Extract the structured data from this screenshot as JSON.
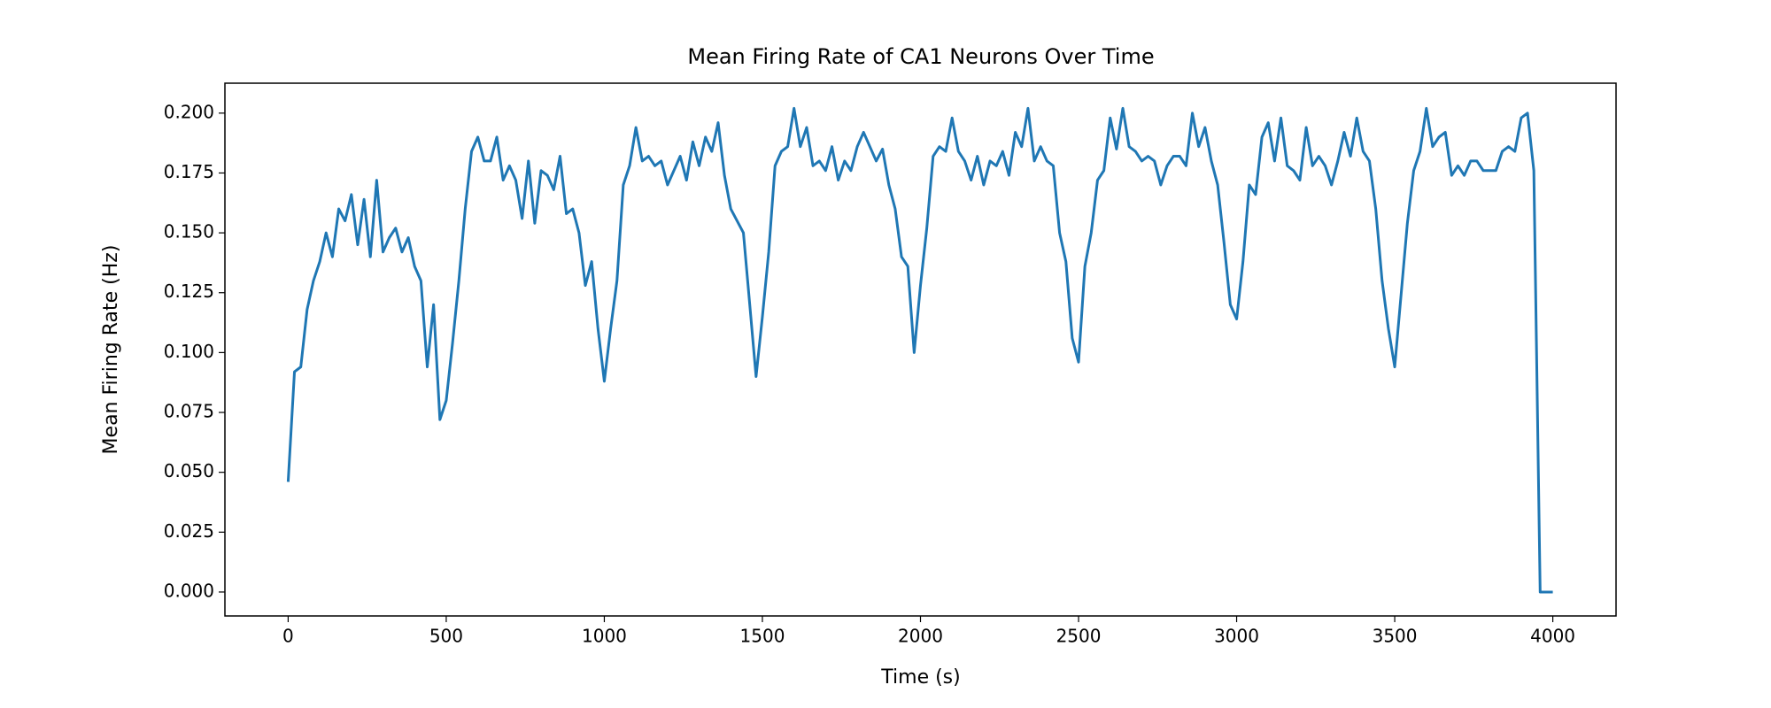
{
  "chart_data": {
    "type": "line",
    "title": "Mean Firing Rate of CA1 Neurons Over Time",
    "x_label": "Time (s)",
    "y_label": "Mean Firing Rate (Hz)",
    "x": [
      0,
      20,
      40,
      60,
      80,
      100,
      120,
      140,
      160,
      180,
      200,
      220,
      240,
      260,
      280,
      300,
      320,
      340,
      360,
      380,
      400,
      420,
      440,
      460,
      480,
      500,
      520,
      540,
      560,
      580,
      600,
      620,
      640,
      660,
      680,
      700,
      720,
      740,
      760,
      780,
      800,
      820,
      840,
      860,
      880,
      900,
      920,
      940,
      960,
      980,
      1000,
      1020,
      1040,
      1060,
      1080,
      1100,
      1120,
      1140,
      1160,
      1180,
      1200,
      1220,
      1240,
      1260,
      1280,
      1300,
      1320,
      1340,
      1360,
      1380,
      1400,
      1420,
      1440,
      1460,
      1480,
      1500,
      1520,
      1540,
      1560,
      1580,
      1600,
      1620,
      1640,
      1660,
      1680,
      1700,
      1720,
      1740,
      1760,
      1780,
      1800,
      1820,
      1840,
      1860,
      1880,
      1900,
      1920,
      1940,
      1960,
      1980,
      2000,
      2020,
      2040,
      2060,
      2080,
      2100,
      2120,
      2140,
      2160,
      2180,
      2200,
      2220,
      2240,
      2260,
      2280,
      2300,
      2320,
      2340,
      2360,
      2380,
      2400,
      2420,
      2440,
      2460,
      2480,
      2500,
      2520,
      2540,
      2560,
      2580,
      2600,
      2620,
      2640,
      2660,
      2680,
      2700,
      2720,
      2740,
      2760,
      2780,
      2800,
      2820,
      2840,
      2860,
      2880,
      2900,
      2920,
      2940,
      2960,
      2980,
      3000,
      3020,
      3040,
      3060,
      3080,
      3100,
      3120,
      3140,
      3160,
      3180,
      3200,
      3220,
      3240,
      3260,
      3280,
      3300,
      3320,
      3340,
      3360,
      3380,
      3400,
      3420,
      3440,
      3460,
      3480,
      3500,
      3520,
      3540,
      3560,
      3580,
      3600,
      3620,
      3640,
      3660,
      3680,
      3700,
      3720,
      3740,
      3760,
      3780,
      3800,
      3820,
      3840,
      3860,
      3880,
      3900,
      3920,
      3940,
      3960,
      3980,
      4000
    ],
    "series": [
      {
        "color": "#1f77b4",
        "values": [
          0.046,
          0.092,
          0.094,
          0.118,
          0.13,
          0.138,
          0.15,
          0.14,
          0.16,
          0.155,
          0.166,
          0.145,
          0.164,
          0.14,
          0.172,
          0.142,
          0.148,
          0.152,
          0.142,
          0.148,
          0.136,
          0.13,
          0.094,
          0.12,
          0.072,
          0.08,
          0.104,
          0.13,
          0.16,
          0.184,
          0.19,
          0.18,
          0.18,
          0.19,
          0.172,
          0.178,
          0.172,
          0.156,
          0.18,
          0.154,
          0.176,
          0.174,
          0.168,
          0.182,
          0.158,
          0.16,
          0.15,
          0.128,
          0.138,
          0.11,
          0.088,
          0.11,
          0.13,
          0.17,
          0.178,
          0.194,
          0.18,
          0.182,
          0.178,
          0.18,
          0.17,
          0.176,
          0.182,
          0.172,
          0.188,
          0.178,
          0.19,
          0.184,
          0.196,
          0.174,
          0.16,
          0.155,
          0.15,
          0.12,
          0.09,
          0.115,
          0.142,
          0.178,
          0.184,
          0.186,
          0.202,
          0.186,
          0.194,
          0.178,
          0.18,
          0.176,
          0.186,
          0.172,
          0.18,
          0.176,
          0.186,
          0.192,
          0.186,
          0.18,
          0.185,
          0.17,
          0.16,
          0.14,
          0.136,
          0.1,
          0.128,
          0.152,
          0.182,
          0.186,
          0.184,
          0.198,
          0.184,
          0.18,
          0.172,
          0.182,
          0.17,
          0.18,
          0.178,
          0.184,
          0.174,
          0.192,
          0.186,
          0.202,
          0.18,
          0.186,
          0.18,
          0.178,
          0.15,
          0.138,
          0.106,
          0.096,
          0.136,
          0.15,
          0.172,
          0.176,
          0.198,
          0.185,
          0.202,
          0.186,
          0.184,
          0.18,
          0.182,
          0.18,
          0.17,
          0.178,
          0.182,
          0.182,
          0.178,
          0.2,
          0.186,
          0.194,
          0.18,
          0.17,
          0.146,
          0.12,
          0.114,
          0.138,
          0.17,
          0.166,
          0.19,
          0.196,
          0.18,
          0.198,
          0.178,
          0.176,
          0.172,
          0.194,
          0.178,
          0.182,
          0.178,
          0.17,
          0.18,
          0.192,
          0.182,
          0.198,
          0.184,
          0.18,
          0.16,
          0.13,
          0.11,
          0.094,
          0.124,
          0.154,
          0.176,
          0.184,
          0.202,
          0.186,
          0.19,
          0.192,
          0.174,
          0.178,
          0.174,
          0.18,
          0.18,
          0.176,
          0.176,
          0.176,
          0.184,
          0.186,
          0.184,
          0.198,
          0.2,
          0.176,
          0,
          0,
          0
        ]
      }
    ],
    "xlim": [
      -200,
      4200
    ],
    "ylim": [
      -0.01,
      0.2125
    ],
    "xticks": [
      0,
      500,
      1000,
      1500,
      2000,
      2500,
      3000,
      3500,
      4000
    ],
    "yticks": [
      {
        "value": 0,
        "label": "0.000"
      },
      {
        "value": 0.025,
        "label": "0.025"
      },
      {
        "value": 0.05,
        "label": "0.050"
      },
      {
        "value": 0.075,
        "label": "0.075"
      },
      {
        "value": 0.1,
        "label": "0.100"
      },
      {
        "value": 0.125,
        "label": "0.125"
      },
      {
        "value": 0.15,
        "label": "0.150"
      },
      {
        "value": 0.175,
        "label": "0.175"
      },
      {
        "value": 0.2,
        "label": "0.200"
      }
    ],
    "grid": false
  }
}
